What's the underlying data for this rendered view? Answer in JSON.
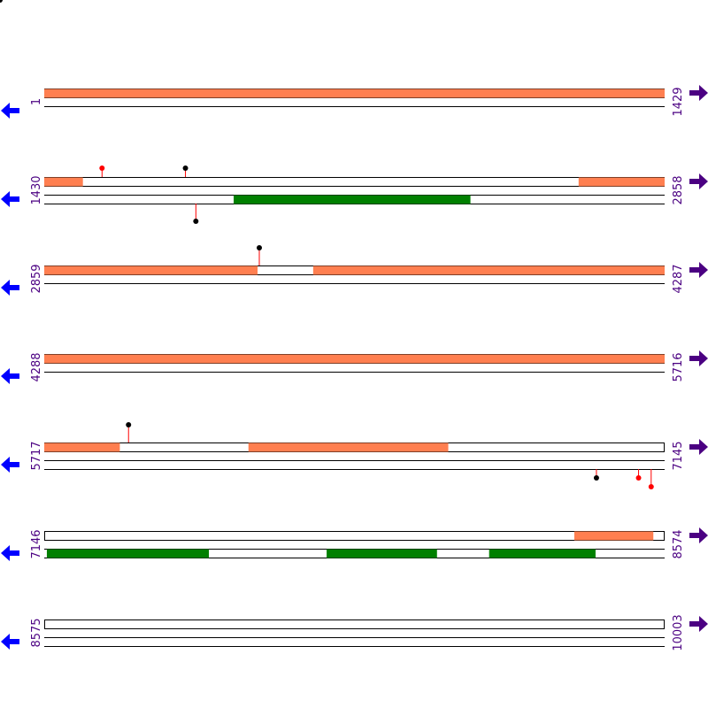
{
  "colors": {
    "forward_feature": "#FF7F50",
    "reverse_feature": "#008000",
    "marker_red": "#FF0000",
    "marker_black": "#000000",
    "left_arrow": "#0000FF",
    "right_arrow": "#4B0082",
    "label": "#4B0082",
    "line": "#000000"
  },
  "icons": {
    "left": "arrow-left-icon",
    "right": "arrow-right-icon"
  },
  "rows": [
    {
      "start": 1,
      "end": 1429,
      "start_label": "1",
      "end_label": "1429",
      "strand_lines": 3,
      "top_features": [
        [
          1,
          1429
        ]
      ],
      "bottom_features": [],
      "markers_up": [],
      "markers_down": []
    },
    {
      "start": 1430,
      "end": 2858,
      "start_label": "1430",
      "end_label": "2858",
      "strand_lines": 4,
      "top_features": [
        [
          1430,
          1519
        ],
        [
          2660,
          2858
        ]
      ],
      "bottom_features": [
        [
          1866,
          2411
        ]
      ],
      "markers_up": [
        {
          "pos": 1563,
          "color": "red",
          "level": 1
        },
        {
          "pos": 1755,
          "color": "black",
          "level": 1
        }
      ],
      "markers_down": [
        {
          "pos": 1779,
          "color": "black",
          "level": 2
        }
      ]
    },
    {
      "start": 2859,
      "end": 4287,
      "start_label": "2859",
      "end_label": "4287",
      "strand_lines": 3,
      "top_features": [
        [
          2859,
          3350
        ],
        [
          3478,
          4287
        ]
      ],
      "bottom_features": [],
      "markers_up": [
        {
          "pos": 3354,
          "color": "black",
          "level": 2
        }
      ],
      "markers_down": []
    },
    {
      "start": 4288,
      "end": 5716,
      "start_label": "4288",
      "end_label": "5716",
      "strand_lines": 3,
      "top_features": [
        [
          4288,
          5716
        ]
      ],
      "bottom_features": [],
      "markers_up": [],
      "markers_down": []
    },
    {
      "start": 5717,
      "end": 7145,
      "start_label": "5717",
      "end_label": "7145",
      "strand_lines": 4,
      "top_features": [
        [
          5717,
          5891
        ],
        [
          6187,
          6647
        ]
      ],
      "bottom_features": [],
      "markers_up": [
        {
          "pos": 5911,
          "color": "black",
          "level": 2
        }
      ],
      "markers_down": [
        {
          "pos": 6988,
          "color": "black",
          "level": 1
        },
        {
          "pos": 7085,
          "color": "red",
          "level": 1
        },
        {
          "pos": 7114,
          "color": "red",
          "level": 2
        }
      ]
    },
    {
      "start": 7146,
      "end": 8574,
      "start_label": "7146",
      "end_label": "8574",
      "strand_lines": 4,
      "top_features": [
        [
          8366,
          8548
        ]
      ],
      "bottom_features": [
        [
          7152,
          7525
        ],
        [
          7796,
          8050
        ],
        [
          8170,
          8415
        ]
      ],
      "markers_up": [],
      "markers_down": []
    },
    {
      "start": 8575,
      "end": 10003,
      "start_label": "8575",
      "end_label": "10003",
      "strand_lines": 4,
      "top_features": [],
      "bottom_features": [],
      "markers_up": [],
      "markers_down": []
    }
  ]
}
